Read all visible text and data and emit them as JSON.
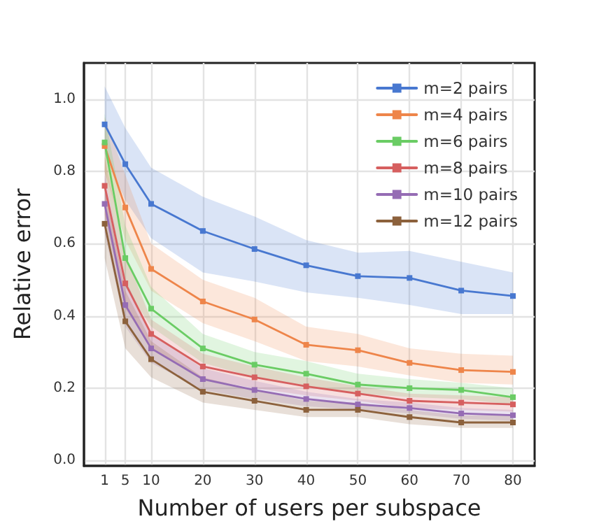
{
  "chart_data": {
    "type": "line",
    "xlabel": "Number of users per subspace",
    "ylabel": "Relative error",
    "x": [
      1,
      5,
      10,
      20,
      30,
      40,
      50,
      60,
      70,
      80
    ],
    "xlim": [
      -3,
      84.2
    ],
    "xticks": [
      1,
      5,
      10,
      20,
      30,
      40,
      50,
      60,
      70,
      80
    ],
    "ylim": [
      -0.015,
      1.1
    ],
    "yticks": [
      {
        "value": 0,
        "label": "0.0"
      },
      {
        "value": 0.2,
        "label": "0.2"
      },
      {
        "value": 0.4,
        "label": "0.4"
      },
      {
        "value": 0.6,
        "label": "0.6"
      },
      {
        "value": 0.8,
        "label": "0.8"
      },
      {
        "value": 1,
        "label": "1.0"
      }
    ],
    "grid": true,
    "legend": "top right",
    "marker": "square",
    "line_style": "solid",
    "series": [
      {
        "name": "m=2 pairs",
        "color": "#4878d0",
        "values": [
          0.93,
          0.82,
          0.71,
          0.635,
          0.585,
          0.54,
          0.51,
          0.505,
          0.47,
          0.455
        ],
        "lower": [
          0.85,
          0.72,
          0.615,
          0.52,
          0.495,
          0.465,
          0.45,
          0.43,
          0.405,
          0.405
        ],
        "upper": [
          1.035,
          0.92,
          0.81,
          0.73,
          0.675,
          0.61,
          0.575,
          0.58,
          0.55,
          0.52
        ]
      },
      {
        "name": "m=4 pairs",
        "color": "#ee854a",
        "values": [
          0.87,
          0.7,
          0.53,
          0.44,
          0.39,
          0.32,
          0.305,
          0.27,
          0.25,
          0.245
        ],
        "lower": [
          0.8,
          0.61,
          0.47,
          0.38,
          0.33,
          0.275,
          0.26,
          0.235,
          0.215,
          0.21
        ],
        "upper": [
          0.95,
          0.79,
          0.6,
          0.5,
          0.45,
          0.37,
          0.35,
          0.31,
          0.295,
          0.29
        ]
      },
      {
        "name": "m=6 pairs",
        "color": "#6acc64",
        "values": [
          0.88,
          0.56,
          0.42,
          0.31,
          0.265,
          0.24,
          0.21,
          0.2,
          0.195,
          0.175
        ],
        "lower": [
          0.8,
          0.48,
          0.37,
          0.27,
          0.23,
          0.205,
          0.185,
          0.175,
          0.17,
          0.155
        ],
        "upper": [
          0.96,
          0.65,
          0.48,
          0.35,
          0.3,
          0.275,
          0.24,
          0.225,
          0.215,
          0.2
        ]
      },
      {
        "name": "m=8 pairs",
        "color": "#d65f5f",
        "values": [
          0.76,
          0.49,
          0.35,
          0.26,
          0.23,
          0.205,
          0.185,
          0.165,
          0.16,
          0.155
        ],
        "lower": [
          0.68,
          0.42,
          0.31,
          0.225,
          0.2,
          0.18,
          0.165,
          0.145,
          0.14,
          0.135
        ],
        "upper": [
          0.84,
          0.57,
          0.39,
          0.295,
          0.26,
          0.23,
          0.205,
          0.185,
          0.18,
          0.175
        ]
      },
      {
        "name": "m=10 pairs",
        "color": "#956cb4",
        "values": [
          0.71,
          0.43,
          0.31,
          0.225,
          0.195,
          0.17,
          0.155,
          0.145,
          0.13,
          0.125
        ],
        "lower": [
          0.63,
          0.37,
          0.27,
          0.195,
          0.17,
          0.15,
          0.14,
          0.13,
          0.115,
          0.11
        ],
        "upper": [
          0.79,
          0.5,
          0.35,
          0.255,
          0.22,
          0.19,
          0.17,
          0.16,
          0.145,
          0.14
        ]
      },
      {
        "name": "m=12 pairs",
        "color": "#8c613c",
        "values": [
          0.655,
          0.385,
          0.28,
          0.19,
          0.165,
          0.14,
          0.14,
          0.12,
          0.105,
          0.105
        ],
        "lower": [
          0.56,
          0.31,
          0.23,
          0.16,
          0.14,
          0.12,
          0.12,
          0.1,
          0.09,
          0.09
        ],
        "upper": [
          0.75,
          0.47,
          0.33,
          0.23,
          0.195,
          0.165,
          0.16,
          0.14,
          0.125,
          0.125
        ]
      }
    ]
  }
}
